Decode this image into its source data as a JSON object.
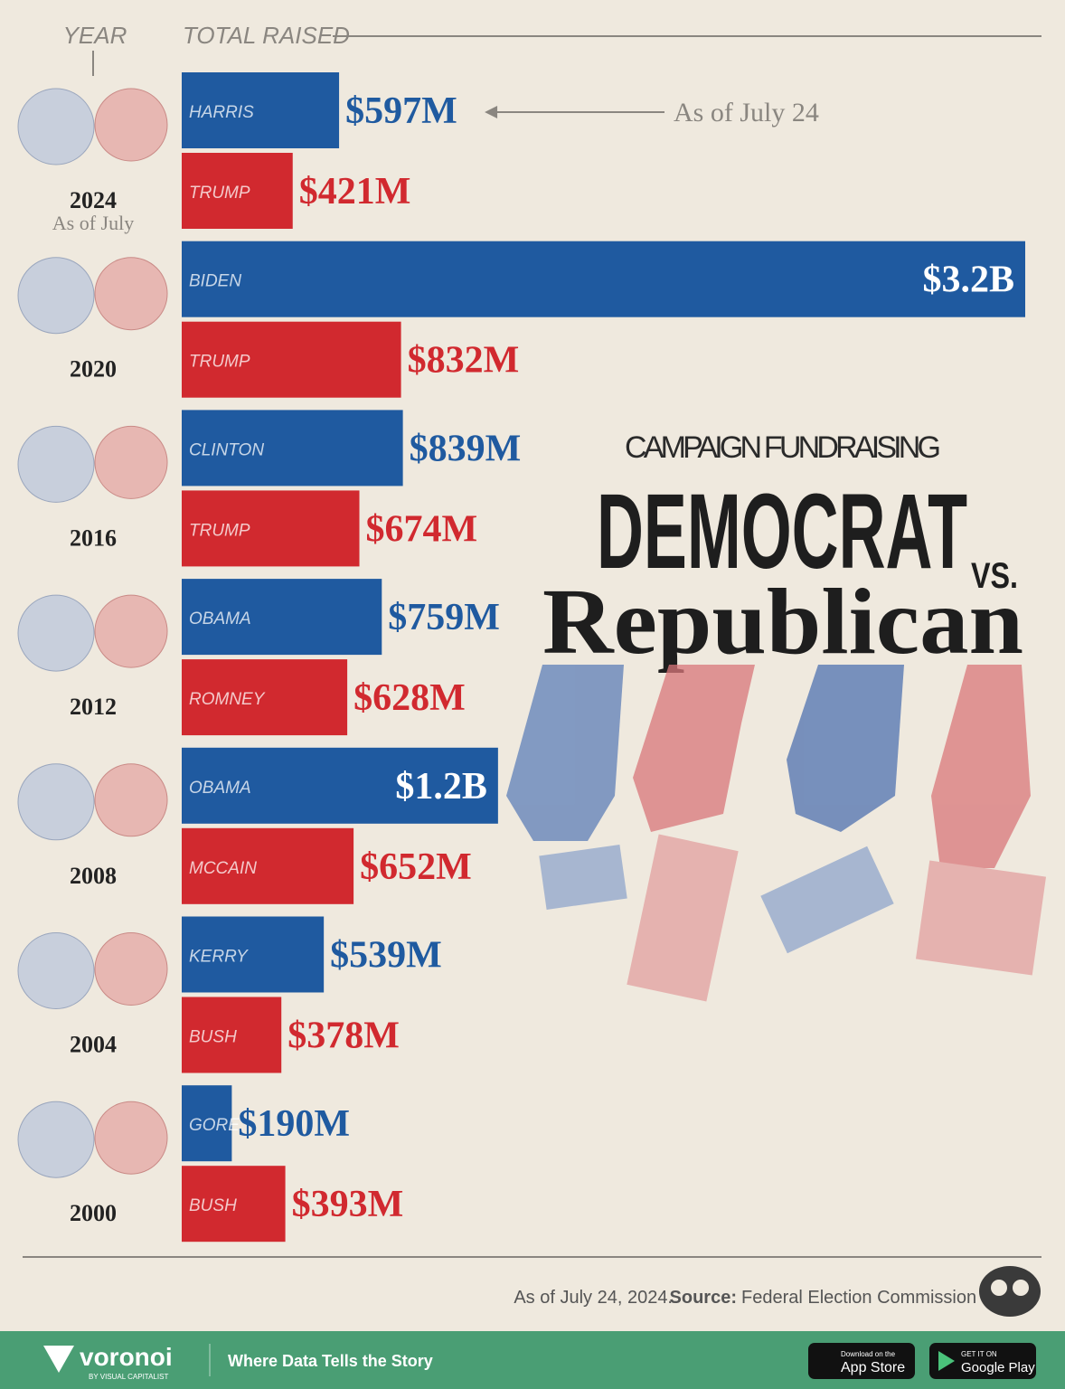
{
  "chart_data": {
    "type": "bar",
    "orientation": "horizontal",
    "header_year": "YEAR",
    "header_value": "TOTAL RAISED",
    "kicker": "CAMPAIGN FUNDRAISING",
    "title_top": "DEMOCRAT",
    "title_vs": "VS.",
    "title_bottom": "Republican",
    "categories": [
      "2024",
      "2020",
      "2016",
      "2012",
      "2008",
      "2004",
      "2000"
    ],
    "category_notes": [
      "As of July",
      null,
      null,
      null,
      null,
      null,
      null
    ],
    "series": [
      {
        "color": "#1f5aa0",
        "labels": [
          "HARRIS",
          "BIDEN",
          "CLINTON",
          "OBAMA",
          "OBAMA",
          "KERRY",
          "GORE"
        ],
        "values": [
          597,
          3200,
          839,
          759,
          1200,
          539,
          190
        ],
        "value_labels": [
          "$597M",
          "$3.2B",
          "$839M",
          "$759M",
          "$1.2B",
          "$539M",
          "$190M"
        ]
      },
      {
        "color": "#d1292f",
        "labels": [
          "TRUMP",
          "TRUMP",
          "TRUMP",
          "ROMNEY",
          "MCCAIN",
          "BUSH",
          "BUSH"
        ],
        "values": [
          421,
          832,
          674,
          628,
          652,
          378,
          393
        ],
        "value_labels": [
          "$421M",
          "$832M",
          "$674M",
          "$628M",
          "$652M",
          "$378M",
          "$393M"
        ]
      }
    ],
    "annotation": "As of July 24",
    "footer": {
      "note": "As of July 24, 2024.",
      "source_label": "Source:",
      "source": "Federal Election Commission"
    }
  },
  "brand": {
    "name": "voronoi",
    "byline": "BY VISUAL CAPITALIST",
    "tagline": "Where Data Tells the Story",
    "app_store_small": "Download on the",
    "app_store": "App Store",
    "google_small": "GET IT ON",
    "google": "Google Play"
  }
}
